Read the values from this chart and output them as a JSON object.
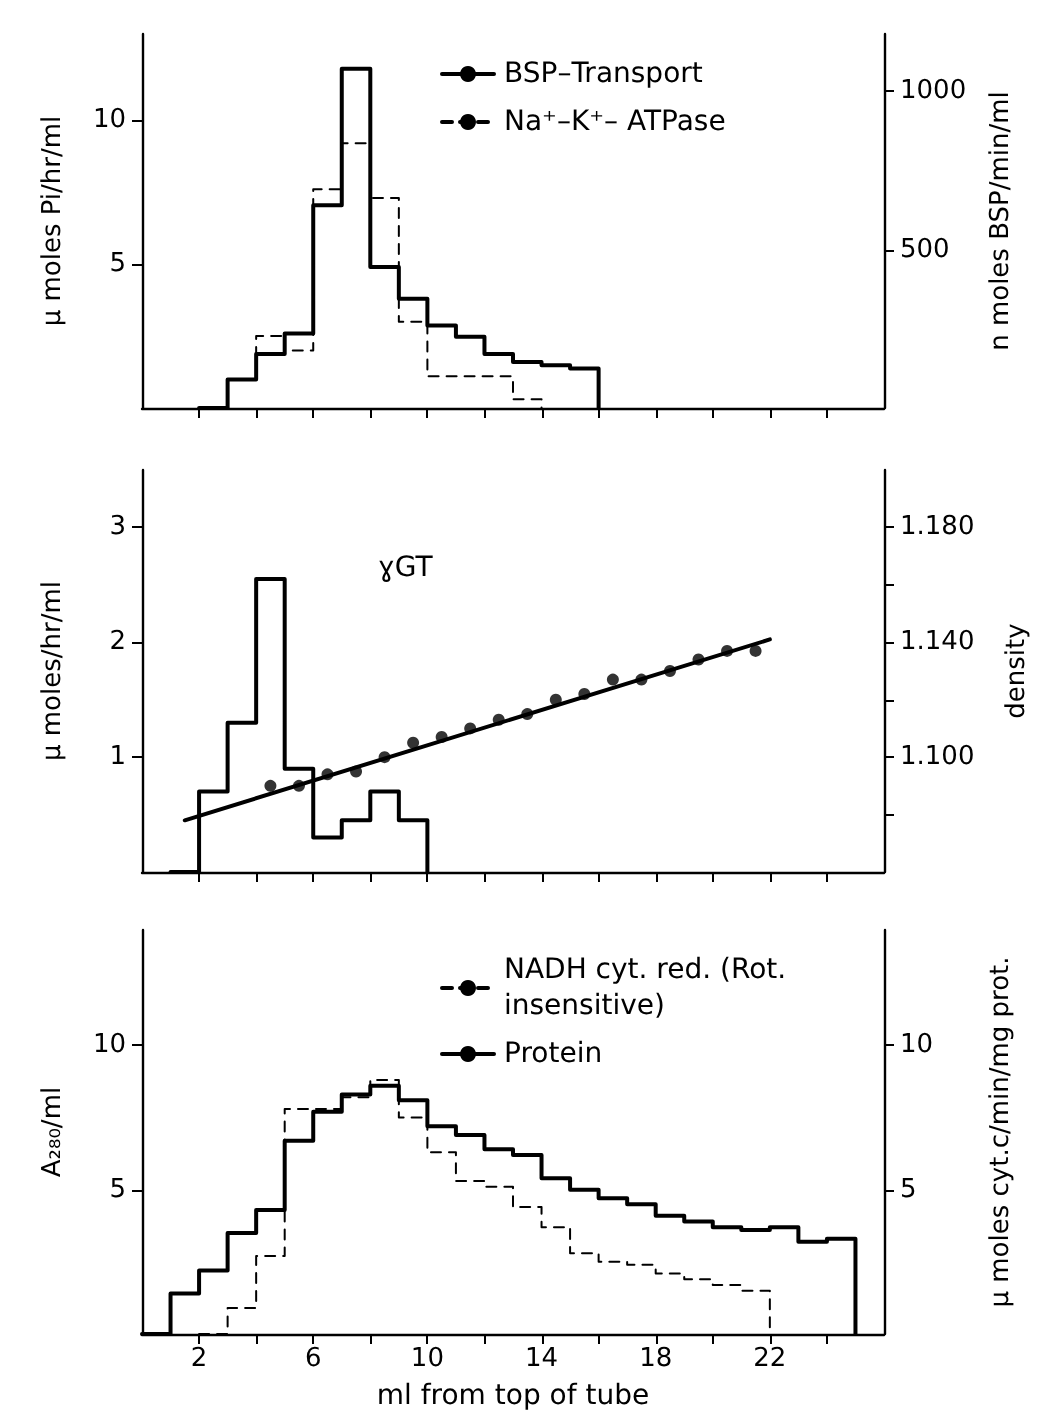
{
  "chart_data": [
    {
      "type": "step",
      "ylabel": "μ moles Pi/hr/ml",
      "y2label": "n moles BSP/min/ml",
      "xlim": [
        0,
        26
      ],
      "xticks": [
        2,
        4,
        6,
        8,
        10,
        12,
        14,
        16,
        18,
        20,
        22,
        24
      ],
      "ylim": [
        0,
        13
      ],
      "yticks": [
        5,
        10
      ],
      "y2lim": [
        0,
        1180
      ],
      "y2ticks": [
        500,
        1000
      ],
      "tick_labels": "y",
      "grid": false,
      "legend": "top right",
      "series": [
        {
          "name": "BSP–Transport",
          "color": "#000000",
          "axis": "y2",
          "line_style": "solid",
          "x": [
            2,
            3,
            4,
            5,
            6,
            7,
            8,
            9,
            10,
            11,
            12,
            13,
            14,
            15,
            16
          ],
          "values": [
            0,
            90,
            170,
            235,
            640,
            1070,
            445,
            345,
            260,
            225,
            170,
            145,
            135,
            125,
            0
          ]
        },
        {
          "name": "Na⁺–K⁺– ATPase",
          "color": "#000000",
          "line_style": "dashed",
          "x": [
            2,
            3,
            4,
            5,
            6,
            7,
            8,
            9,
            10,
            11,
            12,
            13,
            14
          ],
          "values": [
            0,
            1.0,
            2.5,
            2.0,
            7.6,
            9.2,
            7.3,
            3.0,
            1.1,
            1.1,
            1.1,
            0.3,
            0
          ]
        }
      ]
    },
    {
      "type": "step",
      "ylabel": "μ moles/hr/ml",
      "y2label": "density",
      "xlim": [
        0,
        26
      ],
      "xticks": [
        2,
        4,
        6,
        8,
        10,
        12,
        14,
        16,
        18,
        20,
        22,
        24
      ],
      "ylim": [
        0,
        3.5
      ],
      "yticks": [
        1,
        2,
        3
      ],
      "y2lim": [
        1.06,
        1.2
      ],
      "y2ticks": [
        {
          "value": 1.08,
          "label": null
        },
        {
          "value": 1.1,
          "label": "1.100"
        },
        {
          "value": 1.12,
          "label": null
        },
        {
          "value": 1.14,
          "label": "1.140"
        },
        {
          "value": 1.16,
          "label": null
        },
        {
          "value": 1.18,
          "label": "1.180"
        }
      ],
      "tick_labels": "y",
      "grid": false,
      "legend": "top",
      "series": [
        {
          "name": "ɣGT",
          "color": "#000000",
          "line_style": "solid",
          "x": [
            1,
            2,
            3,
            4,
            5,
            6,
            7,
            8,
            9,
            10
          ],
          "values": [
            0,
            0.7,
            1.3,
            2.55,
            0.9,
            0.3,
            0.45,
            0.7,
            0.45,
            0
          ]
        },
        {
          "type": "scatter",
          "marker": "circle",
          "color": "#000000",
          "axis": "y2",
          "x": [
            4.5,
            5.5,
            6.5,
            7.5,
            8.5,
            9.5,
            10.5,
            11.5,
            12.5,
            13.5,
            14.5,
            15.5,
            16.5,
            17.5,
            18.5,
            19.5,
            20.5,
            21.5
          ],
          "values": [
            1.09,
            1.09,
            1.094,
            1.095,
            1.1,
            1.105,
            1.107,
            1.11,
            1.113,
            1.115,
            1.12,
            1.122,
            1.127,
            1.127,
            1.13,
            1.134,
            1.137,
            1.137
          ]
        },
        {
          "type": "line",
          "color": "#000000",
          "axis": "y2",
          "line_style": "solid",
          "x": [
            1.5,
            22
          ],
          "values": [
            1.078,
            1.141
          ]
        }
      ]
    },
    {
      "type": "step",
      "xlabel": "ml from top of tube",
      "ylabel": "A₂₈₀/ml",
      "y2label": "μ moles cyt.c/min/mg prot.",
      "xlim": [
        0,
        26
      ],
      "xticks": [
        2,
        {
          "value": 4,
          "label": null
        },
        6,
        {
          "value": 8,
          "label": null
        },
        10,
        {
          "value": 12,
          "label": null
        },
        14,
        {
          "value": 16,
          "label": null
        },
        18,
        {
          "value": 20,
          "label": null
        },
        22,
        {
          "value": 24,
          "label": null
        }
      ],
      "ylim": [
        0,
        14
      ],
      "yticks": [
        5,
        10
      ],
      "y2lim": [
        0,
        14
      ],
      "y2ticks": [
        5,
        10
      ],
      "grid": false,
      "legend": "top right",
      "series": [
        {
          "name": "NADH cyt. red. (Rot. insensitive)",
          "color": "#000000",
          "axis": "y2",
          "line_style": "dashed",
          "x": [
            2,
            3,
            4,
            5,
            6,
            7,
            8,
            9,
            10,
            11,
            12,
            13,
            14,
            15,
            16,
            17,
            18,
            19,
            20,
            21,
            22
          ],
          "values": [
            0,
            0.9,
            2.7,
            7.8,
            7.8,
            8.2,
            8.8,
            7.5,
            6.3,
            5.3,
            5.1,
            4.4,
            3.7,
            2.8,
            2.5,
            2.4,
            2.1,
            1.9,
            1.7,
            1.5,
            0
          ]
        },
        {
          "name": "Protein",
          "color": "#000000",
          "line_style": "solid",
          "x": [
            0,
            1,
            2,
            3,
            4,
            5,
            6,
            7,
            8,
            9,
            10,
            11,
            12,
            13,
            14,
            15,
            16,
            17,
            18,
            19,
            20,
            21,
            22,
            23,
            24,
            25
          ],
          "values": [
            0,
            1.4,
            2.2,
            3.5,
            4.3,
            6.7,
            7.7,
            8.3,
            8.6,
            8.1,
            7.2,
            6.9,
            6.4,
            6.2,
            5.4,
            5.0,
            4.7,
            4.5,
            4.1,
            3.9,
            3.7,
            3.6,
            3.7,
            3.2,
            3.3,
            0
          ]
        }
      ]
    }
  ]
}
